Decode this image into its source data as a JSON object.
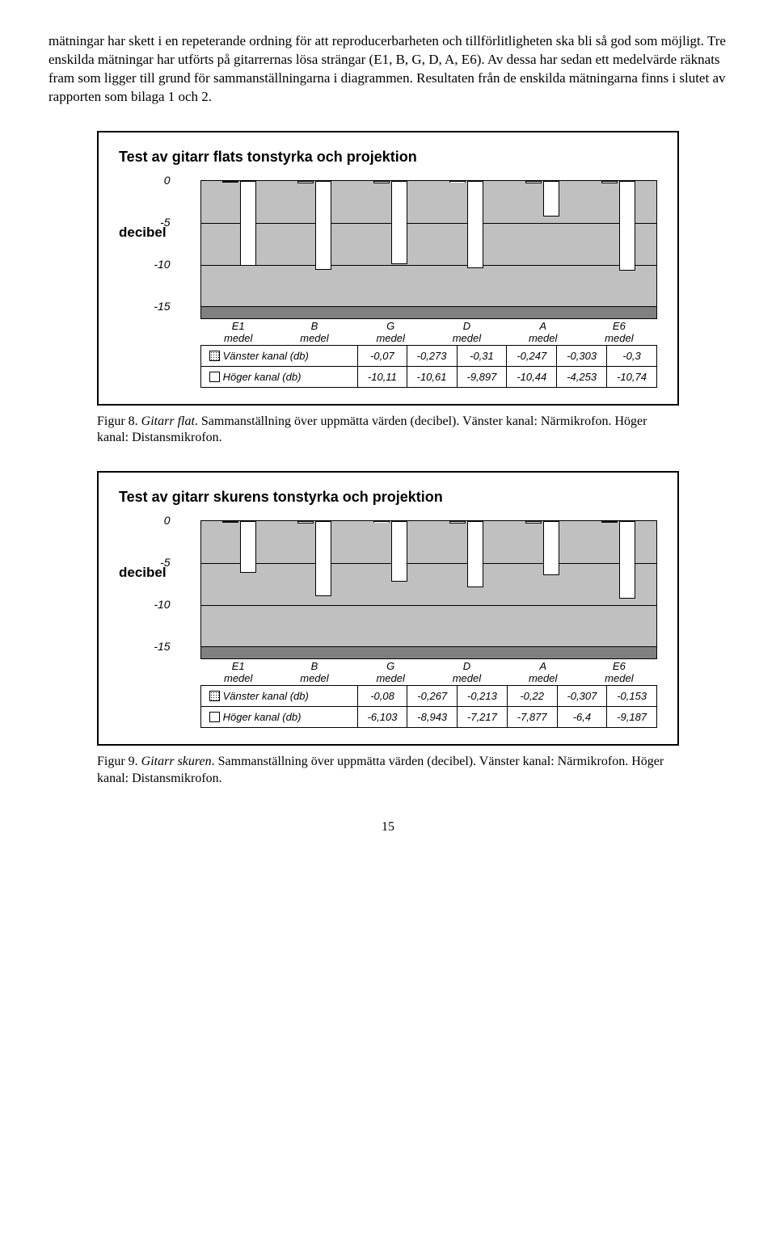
{
  "body_text": "mätningar har skett i en repeterande ordning för att reproducerbarheten och tillförlitligheten ska bli så god som möjligt. Tre enskilda mätningar har utförts på gitarrernas lösa strängar (E1, B, G, D, A, E6). Av dessa har sedan ett medelvärde räknats fram som ligger till grund för sammanställningarna i diagrammen. Resultaten från de enskilda mätningarna finns i slutet av rapporten som bilaga 1 och 2.",
  "chart1": {
    "title": "Test av gitarr flats tonstyrka och projektion",
    "ylabel": "decibel",
    "ylim": [
      -15,
      0
    ],
    "yticks": [
      0,
      -5,
      -10,
      -15
    ],
    "categories": [
      "E1 medel",
      "B medel",
      "G medel",
      "D medel",
      "A medel",
      "E6 medel"
    ],
    "series": [
      {
        "name": "Vänster kanal (db)",
        "pattern": "dotted",
        "values": [
          -0.07,
          -0.273,
          -0.31,
          -0.247,
          -0.303,
          -0.3
        ]
      },
      {
        "name": "Höger kanal (db)",
        "pattern": "plain",
        "values": [
          -10.11,
          -10.61,
          -9.897,
          -10.44,
          -4.253,
          -10.74
        ]
      }
    ],
    "row1": [
      "-0,07",
      "-0,273",
      "-0,31",
      "-0,247",
      "-0,303",
      "-0,3"
    ],
    "row2": [
      "-10,11",
      "-10,61",
      "-9,897",
      "-10,44",
      "-4,253",
      "-10,74"
    ]
  },
  "caption1": {
    "fig": "Figur 8. ",
    "ital": "Gitarr flat",
    "rest": ". Sammanställning över uppmätta värden (decibel). Vänster kanal: Närmikrofon. Höger kanal: Distansmikrofon."
  },
  "chart2": {
    "title": "Test av gitarr skurens tonstyrka och projektion",
    "ylabel": "decibel",
    "ylim": [
      -15,
      0
    ],
    "yticks": [
      0,
      -5,
      -10,
      -15
    ],
    "categories": [
      "E1 medel",
      "B medel",
      "G medel",
      "D medel",
      "A medel",
      "E6 medel"
    ],
    "series": [
      {
        "name": "Vänster kanal (db)",
        "pattern": "dotted",
        "values": [
          -0.08,
          -0.267,
          -0.213,
          -0.22,
          -0.307,
          -0.153
        ]
      },
      {
        "name": "Höger kanal (db)",
        "pattern": "plain",
        "values": [
          -6.103,
          -8.943,
          -7.217,
          -7.877,
          -6.4,
          -9.187
        ]
      }
    ],
    "row1": [
      "-0,08",
      "-0,267",
      "-0,213",
      "-0,22",
      "-0,307",
      "-0,153"
    ],
    "row2": [
      "-6,103",
      "-8,943",
      "-7,217",
      "-7,877",
      "-6,4",
      "-9,187"
    ]
  },
  "caption2": {
    "fig": "Figur 9. ",
    "ital": "Gitarr skuren",
    "rest": ". Sammanställning över uppmätta värden (decibel). Vänster kanal: Närmikrofon. Höger kanal: Distansmikrofon."
  },
  "page_number": "15"
}
